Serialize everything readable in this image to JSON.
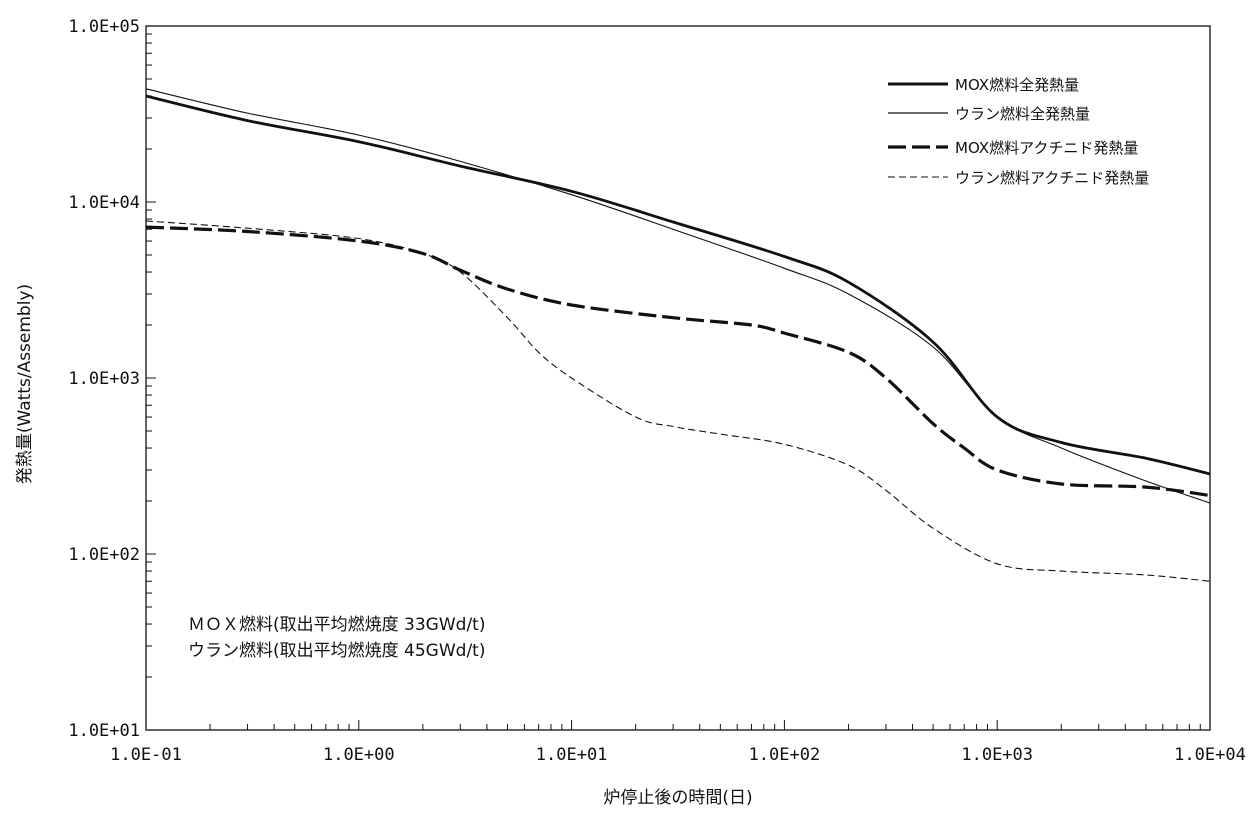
{
  "chart_data": {
    "type": "line",
    "title": "",
    "xlabel": "炉停止後の時間(日)",
    "ylabel": "発熱量(Watts/Assembly)",
    "x_scale": "log",
    "y_scale": "log",
    "xlim": [
      0.1,
      10000
    ],
    "ylim": [
      10,
      100000
    ],
    "x_ticks": [
      0.1,
      1,
      10,
      100,
      1000,
      10000
    ],
    "x_tick_labels": [
      "1.0E-01",
      "1.0E+00",
      "1.0E+01",
      "1.0E+02",
      "1.0E+03",
      "1.0E+04"
    ],
    "y_ticks": [
      10,
      100,
      1000,
      10000,
      100000
    ],
    "y_tick_labels": [
      "1.0E+01",
      "1.0E+02",
      "1.0E+03",
      "1.0E+04",
      "1.0E+05"
    ],
    "grid": false,
    "legend_position": "top-right",
    "series": [
      {
        "name": "MOX燃料全発熱量",
        "style": "thick-solid",
        "x": [
          0.1,
          0.3,
          1,
          3,
          10,
          30,
          100,
          200,
          500,
          1000,
          2000,
          5000,
          10000
        ],
        "y": [
          40000,
          29000,
          22000,
          16000,
          11500,
          7700,
          4900,
          3500,
          1600,
          600,
          430,
          350,
          285
        ]
      },
      {
        "name": "ウラン燃料全発熱量",
        "style": "thin-solid",
        "x": [
          0.1,
          0.3,
          1,
          3,
          10,
          30,
          100,
          200,
          500,
          1000,
          2000,
          5000,
          10000
        ],
        "y": [
          44000,
          32000,
          24000,
          17000,
          11000,
          7000,
          4200,
          3000,
          1500,
          600,
          400,
          260,
          195
        ]
      },
      {
        "name": "MOX燃料アクチニド発熱量",
        "style": "thick-dash",
        "x": [
          0.1,
          0.3,
          1,
          2,
          3,
          5,
          10,
          30,
          70,
          100,
          200,
          300,
          500,
          700,
          1000,
          2000,
          5000,
          10000
        ],
        "y": [
          7200,
          6800,
          6000,
          5100,
          4100,
          3200,
          2600,
          2200,
          2000,
          1800,
          1400,
          1000,
          550,
          400,
          300,
          250,
          240,
          215
        ]
      },
      {
        "name": "ウラン燃料アクチニド発熱量",
        "style": "thin-dash",
        "x": [
          0.1,
          0.3,
          1,
          2,
          3,
          5,
          7,
          10,
          20,
          30,
          50,
          100,
          200,
          300,
          500,
          1000,
          2000,
          5000,
          10000
        ],
        "y": [
          7800,
          7100,
          6200,
          5100,
          4000,
          2200,
          1400,
          1000,
          600,
          530,
          480,
          420,
          320,
          230,
          140,
          88,
          80,
          76,
          70
        ]
      }
    ],
    "annotations": [
      "ＭＯＸ燃料(取出平均燃焼度 33GWd/t)",
      "ウラン燃料(取出平均燃焼度 45GWd/t)"
    ]
  }
}
